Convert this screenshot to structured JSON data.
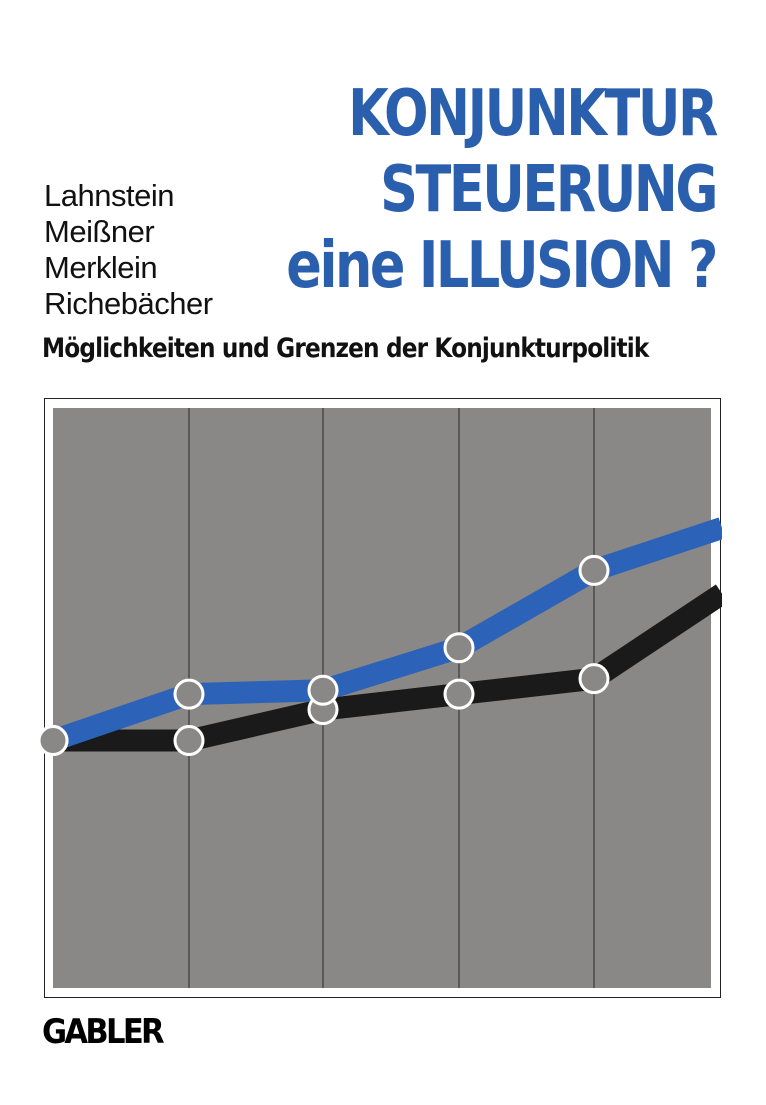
{
  "cover": {
    "authors": [
      "Lahnstein",
      "Meißner",
      "Merklein",
      "Richebächer"
    ],
    "title_lines": [
      "KONJUNKTUR",
      "STEUERUNG",
      "eine ILLUSION ?"
    ],
    "subtitle": "Möglichkeiten und Grenzen der Konjunkturpolitik",
    "publisher": "GABLER"
  },
  "colors": {
    "title": "#2a5fae",
    "panel_background": "#8a8886",
    "blue_line": "#2c63b8",
    "black_line": "#1a1a1a",
    "grid_line": "#3a3a3a"
  },
  "chart_data": {
    "type": "line",
    "x": [
      0,
      1,
      2,
      3,
      4,
      5
    ],
    "series": [
      {
        "color": "#2c63b8",
        "values": [
          8.4,
          9.6,
          9.7,
          10.8,
          12.8,
          13.9
        ],
        "markers": [
          true,
          true,
          true,
          true,
          true,
          false
        ]
      },
      {
        "color": "#1a1a1a",
        "values": [
          8.4,
          8.4,
          9.2,
          9.6,
          10.0,
          12.2
        ],
        "markers": [
          false,
          true,
          true,
          true,
          true,
          false
        ]
      }
    ],
    "xlim": [
      0,
      5
    ],
    "ylim": [
      2,
      17
    ],
    "grid": "vertical"
  }
}
